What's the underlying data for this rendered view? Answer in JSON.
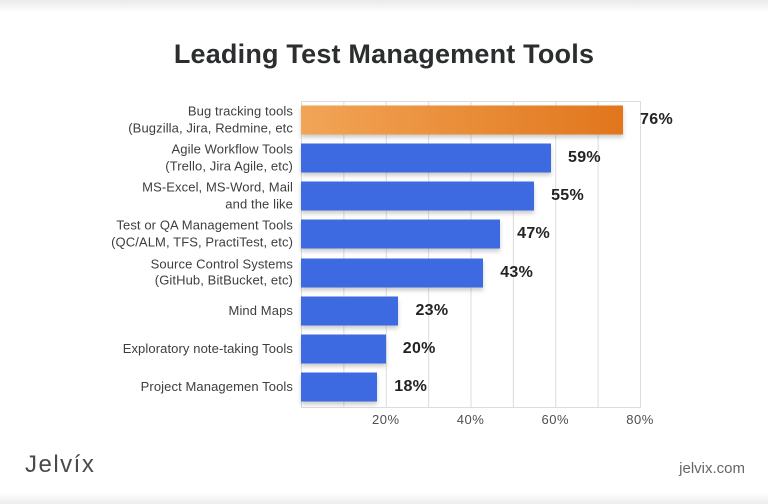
{
  "page": {
    "title": "Leading Test Management Tools",
    "brand_logo_text": "Jelvíx",
    "website": "jelvix.com"
  },
  "colors": {
    "bar_blue": "#3d6ae0",
    "bar_orange_gradient_left": "#f2a557",
    "bar_orange_gradient_right": "#e1761c",
    "gridline": "#dcdcdc",
    "title_text": "#2b2d2e",
    "label_text": "#3e3e3e",
    "value_text": "#212325"
  },
  "chart_data": {
    "type": "bar",
    "orientation": "horizontal",
    "title": "Leading Test Management Tools",
    "categories": [
      "Bug tracking tools\n(Bugzilla, Jira, Redmine, etc",
      "Agile Workflow Tools\n(Trello, Jira Agile, etc)",
      "MS-Excel, MS-Word, Mail\nand the like",
      "Test or QA Management Tools\n(QC/ALM, TFS, PractiTest, etc)",
      "Source Control Systems\n(GitHub, BitBucket, etc)",
      "Mind Maps",
      "Exploratory note-taking Tools",
      "Project Managemen Tools"
    ],
    "values": [
      76,
      59,
      55,
      47,
      43,
      23,
      20,
      18
    ],
    "value_labels": [
      "76%",
      "59%",
      "55%",
      "47%",
      "43%",
      "23%",
      "20%",
      "18%"
    ],
    "x_ticks": [
      "20%",
      "40%",
      "60%",
      "80%"
    ],
    "x_tick_values": [
      20,
      40,
      60,
      80
    ],
    "xlim": [
      0,
      80
    ],
    "gridlines": "vertical every 10%",
    "legend": "none",
    "highlight_first_bar": true
  }
}
